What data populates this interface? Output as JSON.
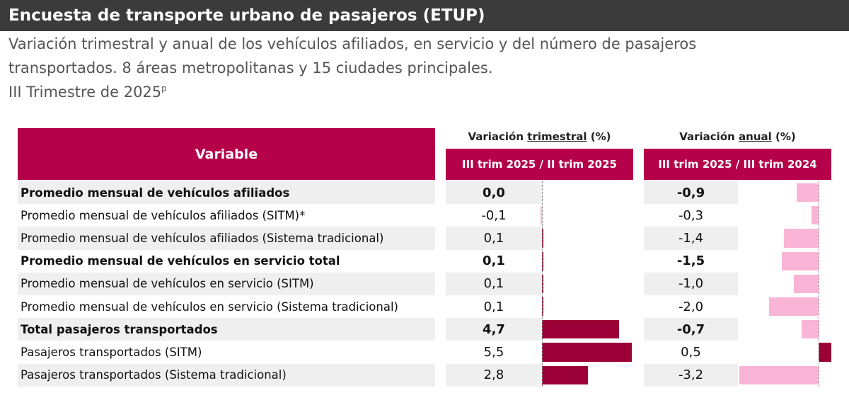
{
  "header": {
    "title": "Encuesta de transporte urbano de pasajeros (ETUP)",
    "subtitle_lines": [
      "Variación trimestral y anual de los vehículos afiliados, en servicio y del número de pasajeros",
      "transportados. 8 áreas metropolitanas y 15 ciudades principales."
    ],
    "period": "III Trimestre de 2025",
    "period_mark": "p"
  },
  "table": {
    "variable_header": "Variable",
    "quarterly_group": {
      "prefix": "Variación",
      "underlined": "trimestral",
      "suffix": "(%)"
    },
    "quarterly_header": "III trim 2025 / II trim 2025",
    "annual_group": {
      "prefix": "Variación",
      "underlined": "anual",
      "suffix": "(%)"
    },
    "annual_header": "III trim 2025 / III trim 2024",
    "positive_color": "#9b0036",
    "negative_color": "#f8b5d5",
    "rows": [
      {
        "variable": "Promedio mensual de vehículos afiliados",
        "bold": true,
        "quarterly": 0.0,
        "quarterly_label": "0,0",
        "annual": -0.9,
        "annual_label": "-0,9"
      },
      {
        "variable": "Promedio mensual de vehículos afiliados (SITM)*",
        "bold": false,
        "quarterly": -0.1,
        "quarterly_label": "-0,1",
        "annual": -0.3,
        "annual_label": "-0,3"
      },
      {
        "variable": "Promedio mensual de vehículos afiliados (Sistema tradicional)",
        "bold": false,
        "quarterly": 0.1,
        "quarterly_label": "0,1",
        "annual": -1.4,
        "annual_label": "-1,4"
      },
      {
        "variable": "Promedio mensual de vehículos en servicio total",
        "bold": true,
        "quarterly": 0.1,
        "quarterly_label": "0,1",
        "annual": -1.5,
        "annual_label": "-1,5"
      },
      {
        "variable": "Promedio mensual de vehículos en servicio (SITM)",
        "bold": false,
        "quarterly": 0.1,
        "quarterly_label": "0,1",
        "annual": -1.0,
        "annual_label": "-1,0"
      },
      {
        "variable": "Promedio mensual de vehículos en servicio (Sistema tradicional)",
        "bold": false,
        "quarterly": 0.1,
        "quarterly_label": "0,1",
        "annual": -2.0,
        "annual_label": "-2,0"
      },
      {
        "variable": "Total pasajeros transportados",
        "bold": true,
        "quarterly": 4.7,
        "quarterly_label": "4,7",
        "annual": -0.7,
        "annual_label": "-0,7"
      },
      {
        "variable": "Pasajeros transportados (SITM)",
        "bold": false,
        "quarterly": 5.5,
        "quarterly_label": "5,5",
        "annual": 0.5,
        "annual_label": "0,5"
      },
      {
        "variable": "Pasajeros transportados (Sistema tradicional)",
        "bold": false,
        "quarterly": 2.8,
        "quarterly_label": "2,8",
        "annual": -3.2,
        "annual_label": "-3,2"
      }
    ]
  }
}
